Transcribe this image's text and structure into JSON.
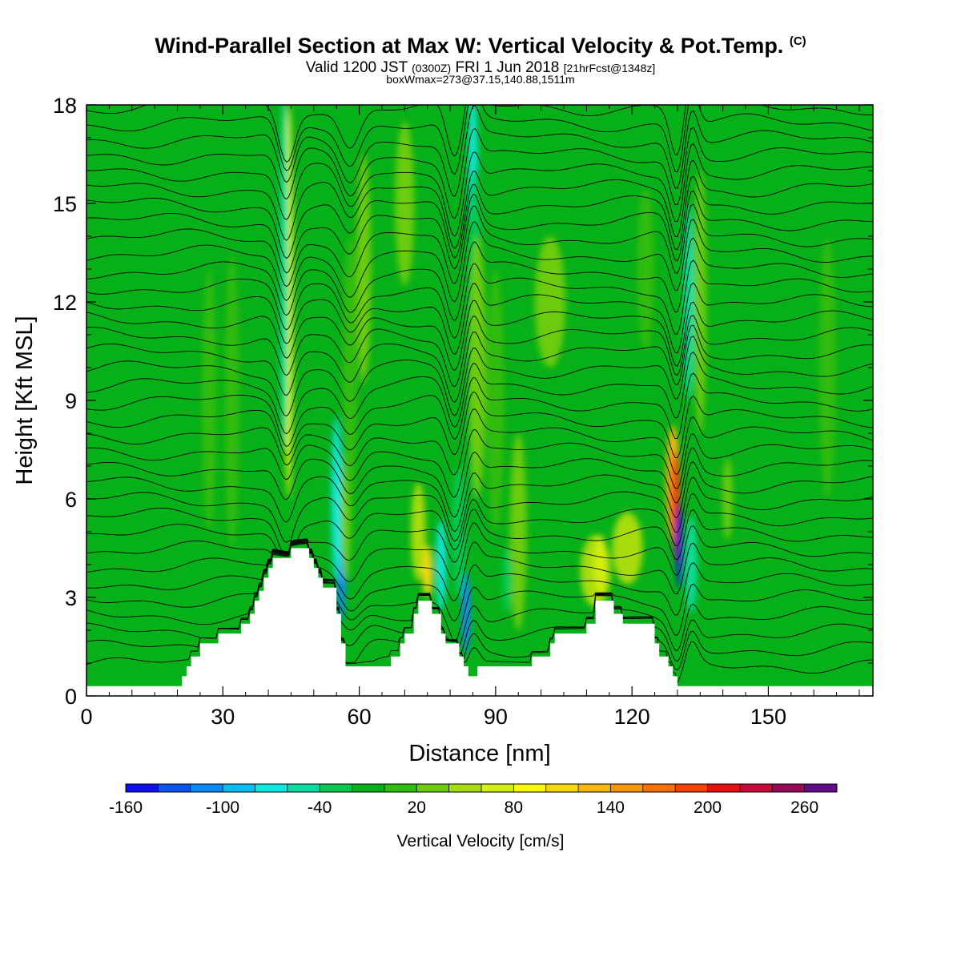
{
  "title": {
    "main": "Wind-Parallel Section at Max W: Vertical Velocity & Pot.Temp.",
    "copyright": "(C)",
    "valid_a": "Valid 1200 JST",
    "valid_utc": "(0300Z)",
    "valid_b": "FRI 1 Jun 2018",
    "forecast": "[21hrFcst@1348z]",
    "box_info": "boxWmax=273@37.15,140.88,1511m"
  },
  "chart_data": {
    "type": "heatmap",
    "xlabel": "Distance [nm]",
    "ylabel": "Height [Kft MSL]",
    "xlim": [
      0,
      173
    ],
    "ylim": [
      0,
      18
    ],
    "x_ticks": [
      0,
      30,
      60,
      90,
      120,
      150
    ],
    "y_ticks": [
      0,
      3,
      6,
      9,
      12,
      15,
      18
    ],
    "colorbar": {
      "title": "Vertical Velocity [cm/s]",
      "tick_labels": [
        "-160",
        "-100",
        "-40",
        "20",
        "80",
        "140",
        "200",
        "260"
      ],
      "tick_values": [
        -160,
        -100,
        -40,
        20,
        80,
        140,
        200,
        260
      ],
      "bins": [
        -160,
        -140,
        -120,
        -100,
        -80,
        -60,
        -40,
        -20,
        0,
        20,
        40,
        60,
        80,
        100,
        120,
        140,
        160,
        180,
        200,
        220,
        240,
        260,
        280
      ],
      "colors": [
        "#1010ee",
        "#0a55f0",
        "#0a8af5",
        "#08bef5",
        "#08e8e0",
        "#08dca0",
        "#06c850",
        "#06b018",
        "#30bc10",
        "#6ccc10",
        "#a8dc10",
        "#d4ee10",
        "#f8f808",
        "#f8d808",
        "#f8b808",
        "#f89808",
        "#f87008",
        "#f84008",
        "#e81010",
        "#c80838",
        "#980858",
        "#600c8c"
      ]
    },
    "background_value": -10,
    "terrain": [
      [
        0,
        0.3
      ],
      [
        21,
        0.3
      ],
      [
        21,
        0.6
      ],
      [
        22,
        0.6
      ],
      [
        22,
        0.9
      ],
      [
        23,
        0.9
      ],
      [
        23,
        1.2
      ],
      [
        25,
        1.2
      ],
      [
        25,
        1.6
      ],
      [
        29,
        1.6
      ],
      [
        29,
        1.9
      ],
      [
        34,
        1.9
      ],
      [
        34,
        2.2
      ],
      [
        36,
        2.2
      ],
      [
        36,
        2.5
      ],
      [
        37,
        2.5
      ],
      [
        37,
        2.9
      ],
      [
        38,
        2.9
      ],
      [
        38,
        3.2
      ],
      [
        39,
        3.2
      ],
      [
        39,
        3.6
      ],
      [
        40,
        3.6
      ],
      [
        40,
        3.9
      ],
      [
        41,
        3.9
      ],
      [
        41,
        4.2
      ],
      [
        45,
        4.2
      ],
      [
        45,
        4.5
      ],
      [
        49,
        4.5
      ],
      [
        49,
        4.2
      ],
      [
        50,
        4.2
      ],
      [
        50,
        3.9
      ],
      [
        51,
        3.9
      ],
      [
        51,
        3.6
      ],
      [
        52,
        3.6
      ],
      [
        52,
        3.3
      ],
      [
        55,
        3.3
      ],
      [
        55,
        2.5
      ],
      [
        56,
        2.5
      ],
      [
        56,
        1.6
      ],
      [
        57,
        1.6
      ],
      [
        57,
        0.9
      ],
      [
        67,
        0.9
      ],
      [
        67,
        1.2
      ],
      [
        69,
        1.2
      ],
      [
        69,
        1.6
      ],
      [
        70,
        1.6
      ],
      [
        70,
        1.9
      ],
      [
        72,
        1.9
      ],
      [
        72,
        2.5
      ],
      [
        73,
        2.5
      ],
      [
        73,
        2.9
      ],
      [
        76,
        2.9
      ],
      [
        76,
        2.5
      ],
      [
        78,
        2.5
      ],
      [
        78,
        1.9
      ],
      [
        79,
        1.9
      ],
      [
        79,
        1.6
      ],
      [
        82,
        1.6
      ],
      [
        82,
        1.2
      ],
      [
        83,
        1.2
      ],
      [
        83,
        0.9
      ],
      [
        84,
        0.9
      ],
      [
        84,
        0.6
      ],
      [
        86,
        0.6
      ],
      [
        86,
        0.9
      ],
      [
        98,
        0.9
      ],
      [
        98,
        1.2
      ],
      [
        102,
        1.2
      ],
      [
        102,
        1.6
      ],
      [
        103,
        1.6
      ],
      [
        103,
        1.9
      ],
      [
        110,
        1.9
      ],
      [
        110,
        2.2
      ],
      [
        112,
        2.2
      ],
      [
        112,
        2.9
      ],
      [
        116,
        2.9
      ],
      [
        116,
        2.5
      ],
      [
        118,
        2.5
      ],
      [
        118,
        2.2
      ],
      [
        125,
        2.2
      ],
      [
        125,
        1.6
      ],
      [
        126,
        1.6
      ],
      [
        126,
        1.2
      ],
      [
        128,
        1.2
      ],
      [
        128,
        0.9
      ],
      [
        129,
        0.9
      ],
      [
        129,
        0.6
      ],
      [
        130,
        0.6
      ],
      [
        130,
        0.3
      ],
      [
        173,
        0.3
      ]
    ],
    "features": [
      {
        "x": 44.5,
        "w": 1.4,
        "y": 12,
        "h": 12,
        "value": 60
      },
      {
        "x": 43.5,
        "w": 1.0,
        "y": 13,
        "h": 11,
        "value": -50
      },
      {
        "x": 32,
        "w": 2.5,
        "y": 9,
        "h": 9,
        "value": 10
      },
      {
        "x": 27,
        "w": 2.5,
        "y": 9,
        "h": 8,
        "value": 10
      },
      {
        "x": 56,
        "w": 1.3,
        "y": 4,
        "h": 3.5,
        "value": -110
      },
      {
        "x": 55,
        "w": 1.5,
        "y": 6,
        "h": 5,
        "value": -70
      },
      {
        "x": 57,
        "w": 1.5,
        "y": 5.5,
        "h": 4,
        "value": 20
      },
      {
        "x": 61,
        "w": 2.5,
        "y": 13,
        "h": 7,
        "value": 20
      },
      {
        "x": 58,
        "w": 2.5,
        "y": 10,
        "h": 8,
        "value": 10
      },
      {
        "x": 70,
        "w": 3.5,
        "y": 15,
        "h": 5,
        "value": 20
      },
      {
        "x": 75,
        "w": 1.5,
        "y": 3.8,
        "h": 1.6,
        "value": 100
      },
      {
        "x": 73,
        "w": 2.5,
        "y": 5,
        "h": 3,
        "value": 40
      },
      {
        "x": 78,
        "w": 1.5,
        "y": 4,
        "h": 2.8,
        "value": -70
      },
      {
        "x": 83.5,
        "w": 1.2,
        "y": 2.5,
        "h": 2.5,
        "value": -110
      },
      {
        "x": 82,
        "w": 2.5,
        "y": 5,
        "h": 4,
        "value": -40
      },
      {
        "x": 85,
        "w": 1.3,
        "y": 16,
        "h": 5,
        "value": -70
      },
      {
        "x": 85.5,
        "w": 2.5,
        "y": 11,
        "h": 10,
        "value": -40
      },
      {
        "x": 86,
        "w": 3,
        "y": 10,
        "h": 8,
        "value": 20
      },
      {
        "x": 95,
        "w": 3,
        "y": 5,
        "h": 6,
        "value": 20
      },
      {
        "x": 92.5,
        "w": 1.5,
        "y": 3.5,
        "h": 2,
        "value": -40
      },
      {
        "x": 90,
        "w": 3,
        "y": 9,
        "h": 8,
        "value": 10
      },
      {
        "x": 112,
        "w": 6,
        "y": 3.8,
        "h": 2.2,
        "value": 40
      },
      {
        "x": 113,
        "w": 2,
        "y": 4,
        "h": 1.8,
        "value": 70
      },
      {
        "x": 119,
        "w": 6,
        "y": 4.5,
        "h": 2.2,
        "value": 40
      },
      {
        "x": 102,
        "w": 6,
        "y": 12,
        "h": 4,
        "value": 20
      },
      {
        "x": 123,
        "w": 3,
        "y": 13,
        "h": 5,
        "value": 10
      },
      {
        "x": 129,
        "w": 2.2,
        "y": 6.5,
        "h": 3.5,
        "value": 120
      },
      {
        "x": 129.5,
        "w": 1.3,
        "y": 6,
        "h": 3,
        "value": 190
      },
      {
        "x": 130,
        "w": 0.7,
        "y": 5,
        "h": 2,
        "value": 230
      },
      {
        "x": 130.5,
        "w": 0.6,
        "y": 4.5,
        "h": 2.5,
        "value": -150
      },
      {
        "x": 132.5,
        "w": 1.6,
        "y": 12,
        "h": 6,
        "value": -60
      },
      {
        "x": 133,
        "w": 1.8,
        "y": 4,
        "h": 3,
        "value": -60
      },
      {
        "x": 135,
        "w": 2,
        "y": 12,
        "h": 8,
        "value": 20
      },
      {
        "x": 141,
        "w": 1.5,
        "y": 6,
        "h": 2.5,
        "value": 30
      },
      {
        "x": 163,
        "w": 3,
        "y": 10,
        "h": 8,
        "value": 10
      }
    ],
    "isentrope_heights": [
      0.95,
      1.45,
      1.95,
      2.45,
      2.95,
      3.45,
      3.95,
      4.45,
      4.95,
      5.45,
      5.95,
      6.45,
      6.95,
      7.45,
      7.95,
      8.45,
      8.95,
      9.45,
      9.95,
      10.45,
      10.95,
      11.45,
      11.95,
      12.45,
      12.95,
      13.45,
      13.95,
      14.45,
      14.95,
      15.45,
      15.95,
      16.45,
      16.95,
      17.45,
      17.95
    ],
    "isentrope_dips": [
      {
        "x": 44,
        "w": 2.5,
        "amp": -0.8
      },
      {
        "x": 58,
        "w": 3,
        "amp": -0.6
      },
      {
        "x": 81,
        "w": 2.5,
        "amp": -0.9
      },
      {
        "x": 85,
        "w": 2,
        "amp": 0.5
      },
      {
        "x": 130,
        "w": 2.2,
        "amp": -0.8
      },
      {
        "x": 133,
        "w": 2,
        "amp": 0.6
      }
    ]
  }
}
